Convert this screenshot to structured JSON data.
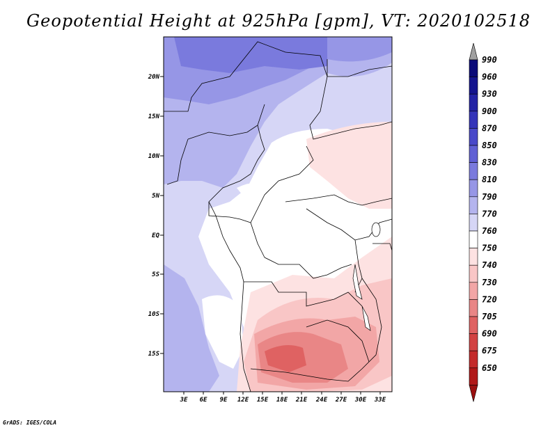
{
  "title": "Geopotential Height at 925hPa [gpm], VT: 2020102518",
  "credit": "GrADS: IGES/COLA",
  "lat_ticks": [
    "20N",
    "15N",
    "10N",
    "5N",
    "EQ",
    "5S",
    "10S",
    "15S"
  ],
  "lon_ticks": [
    "3E",
    "6E",
    "9E",
    "12E",
    "15E",
    "18E",
    "21E",
    "24E",
    "27E",
    "30E",
    "33E"
  ],
  "colorbar": {
    "levels": [
      "990",
      "960",
      "930",
      "900",
      "870",
      "850",
      "830",
      "810",
      "790",
      "770",
      "760",
      "750",
      "740",
      "730",
      "720",
      "705",
      "690",
      "675",
      "650"
    ],
    "colors": [
      "#0a0a78",
      "#14148e",
      "#2323a5",
      "#3434b9",
      "#4949c9",
      "#6060d4",
      "#7a7add",
      "#9696e6",
      "#b4b4ee",
      "#d6d6f6",
      "#ffffff",
      "#fde2e2",
      "#f9c6c6",
      "#f2a6a6",
      "#e98686",
      "#df6262",
      "#d24242",
      "#c32a2a",
      "#b01818"
    ],
    "top_arrow_color": "#a0a0a0",
    "bottom_arrow_color": "#9a1010"
  }
}
